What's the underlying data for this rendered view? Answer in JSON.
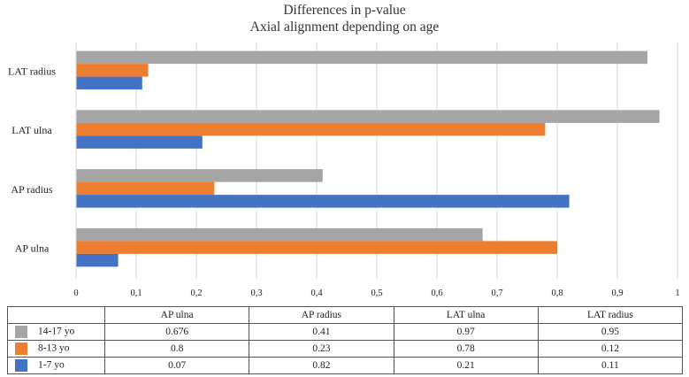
{
  "chart_data": {
    "type": "bar",
    "orientation": "horizontal",
    "title": "Differences in p-value",
    "subtitle": "Axial alignment depending on age",
    "categories": [
      "AP ulna",
      "AP radius",
      "LAT ulna",
      "LAT radius"
    ],
    "series": [
      {
        "name": "14-17 yo",
        "color": "#a5a5a5",
        "values": [
          0.676,
          0.41,
          0.97,
          0.95
        ],
        "display": [
          "0.676",
          "0.41",
          "0.97",
          "0.95"
        ]
      },
      {
        "name": "8-13 yo",
        "color": "#ed7d31",
        "values": [
          0.8,
          0.23,
          0.78,
          0.12
        ],
        "display": [
          "0.8",
          "0.23",
          "0.78",
          "0.12"
        ]
      },
      {
        "name": "1-7 yo",
        "color": "#4472c4",
        "values": [
          0.07,
          0.82,
          0.21,
          0.11
        ],
        "display": [
          "0.07",
          "0.82",
          "0.21",
          "0.11"
        ]
      }
    ],
    "xlim": [
      0,
      1
    ],
    "ticks": [
      0,
      0.1,
      0.2,
      0.3,
      0.4,
      0.5,
      0.6,
      0.7,
      0.8,
      0.9,
      1
    ],
    "tick_labels": [
      "0",
      "0,1",
      "0,2",
      "0,3",
      "0,4",
      "0,5",
      "0,6",
      "0,7",
      "0,8",
      "0,9",
      "1"
    ],
    "grid": true,
    "legend": "data-table"
  }
}
